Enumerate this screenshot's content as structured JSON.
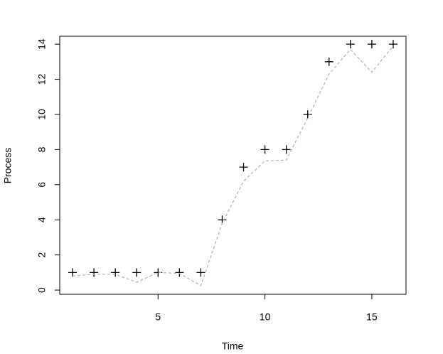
{
  "chart_data": {
    "type": "scatter",
    "x_label": "Time",
    "y_label": "Process",
    "x": [
      1,
      2,
      3,
      4,
      5,
      6,
      7,
      8,
      9,
      10,
      11,
      12,
      13,
      14,
      15,
      16
    ],
    "series": [
      {
        "color": "#000000",
        "marker": "plus",
        "values": [
          1,
          1,
          1,
          1,
          1,
          1,
          1,
          4,
          7,
          8,
          8,
          10,
          13,
          14,
          14,
          14
        ]
      },
      {
        "color": "#b3b3b3",
        "line": "dashed",
        "values": [
          0.8,
          0.9,
          0.9,
          0.45,
          1.0,
          0.95,
          0.25,
          3.8,
          6.2,
          7.35,
          7.4,
          9.8,
          12.3,
          13.7,
          12.4,
          13.9
        ]
      }
    ],
    "xlim": [
      0.4,
      16.6
    ],
    "ylim": [
      -0.24,
      14.45
    ],
    "xticks": [
      5,
      10,
      15
    ],
    "yticks": [
      0,
      2,
      4,
      6,
      8,
      10,
      12,
      14
    ]
  }
}
